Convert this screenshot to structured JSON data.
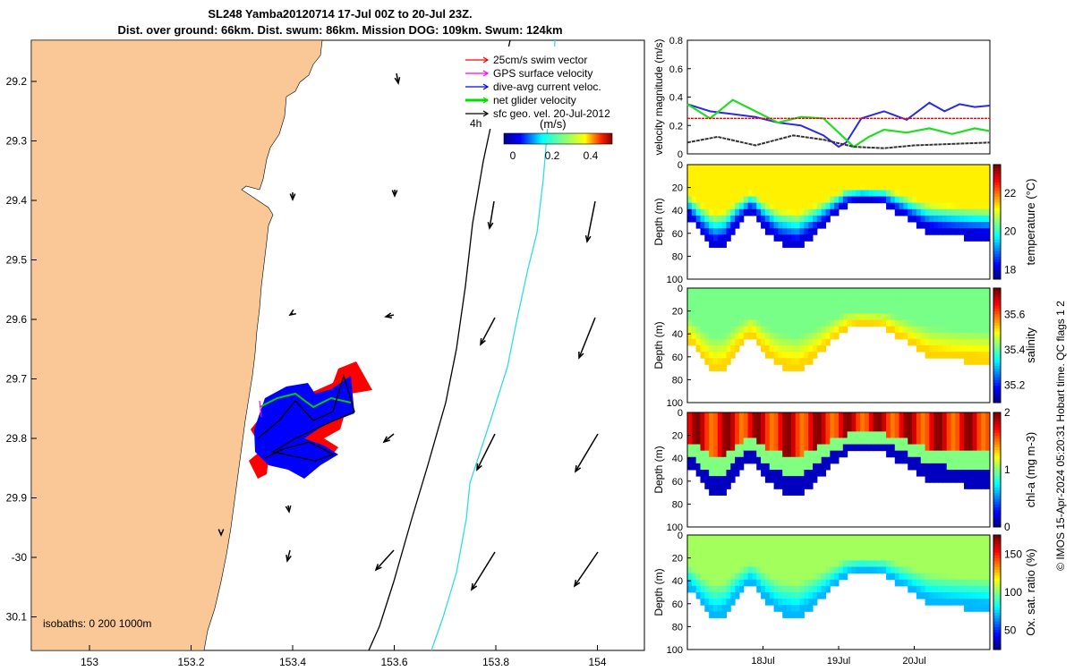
{
  "title": {
    "line1": "SL248 Yamba20120714 17-Jul 00Z to 20-Jul 23Z.",
    "line2": "Dist. over ground: 66km. Dist. swum: 86km. Mission DOG: 109km. Swum: 124km"
  },
  "map": {
    "lat_ticks": [
      "29.2",
      "29.3",
      "29.4",
      "29.5",
      "29.6",
      "29.7",
      "29.8",
      "29.9",
      "-30",
      "30.1"
    ],
    "lon_ticks": [
      "153",
      "153.2",
      "153.4",
      "153.6",
      "153.8",
      "154"
    ],
    "legend": [
      {
        "label": "25cm/s swim vector",
        "color": "#ff0000"
      },
      {
        "label": "GPS surface velocity",
        "color": "#ff00ff"
      },
      {
        "label": "dive-avg current veloc.",
        "color": "#0000ff"
      },
      {
        "label": "net glider velocity",
        "color": "#00e000"
      },
      {
        "label": "sfc geo. vel. 20-Jul-2012",
        "color": "#000000"
      }
    ],
    "time_step": "4h",
    "colorbar": {
      "label": "(m/s)",
      "ticks": [
        "0",
        "0.2",
        "0.4"
      ]
    },
    "isobaths": "isobaths: 0   200  1000m",
    "land_color": "#f9c896"
  },
  "chart_data": [
    {
      "type": "line",
      "title": "",
      "ylabel": "velocity magnitude (m/s)",
      "ylim": [
        0,
        0.8
      ],
      "yticks": [
        "0",
        "0.2",
        "0.4",
        "0.6",
        "0.8"
      ],
      "x_days": [
        17,
        21
      ],
      "series": [
        {
          "name": "dive-avg current",
          "color": "#2a2ae0",
          "x": [
            17.0,
            17.3,
            17.6,
            17.9,
            18.2,
            18.5,
            18.8,
            19.0,
            19.1,
            19.3,
            19.6,
            19.9,
            20.2,
            20.4,
            20.6,
            20.8,
            21.0
          ],
          "values": [
            0.35,
            0.3,
            0.28,
            0.26,
            0.22,
            0.2,
            0.13,
            0.05,
            0.08,
            0.25,
            0.3,
            0.24,
            0.36,
            0.3,
            0.35,
            0.33,
            0.34
          ]
        },
        {
          "name": "net glider",
          "color": "#22dd22",
          "x": [
            17.0,
            17.3,
            17.6,
            17.9,
            18.2,
            18.5,
            18.8,
            19.0,
            19.2,
            19.4,
            19.6,
            19.9,
            20.2,
            20.5,
            20.8,
            21.0
          ],
          "values": [
            0.35,
            0.25,
            0.38,
            0.3,
            0.22,
            0.26,
            0.25,
            0.15,
            0.05,
            0.12,
            0.17,
            0.15,
            0.18,
            0.14,
            0.18,
            0.16
          ]
        },
        {
          "name": "swim vector",
          "color": "#ff0000",
          "x": [
            17.0,
            21.0
          ],
          "values": [
            0.25,
            0.25
          ]
        },
        {
          "name": "surface geostrophic",
          "color": "#333333",
          "x": [
            17.0,
            17.4,
            17.9,
            18.4,
            18.8,
            19.2,
            19.6,
            20.0,
            20.5,
            21.0
          ],
          "values": [
            0.08,
            0.12,
            0.06,
            0.13,
            0.1,
            0.05,
            0.04,
            0.06,
            0.07,
            0.08
          ]
        }
      ]
    },
    {
      "type": "heatmap",
      "ylabel": "Depth (m)",
      "ylim": [
        0,
        100
      ],
      "yticks": [
        "0",
        "20",
        "40",
        "60",
        "80",
        "100"
      ],
      "variable": "temperature (°C)",
      "clim": [
        17.5,
        23.5
      ],
      "cticks": [
        "18",
        "20",
        "22"
      ],
      "surface": 21.3,
      "bottom": 18.0
    },
    {
      "type": "heatmap",
      "ylabel": "Depth (m)",
      "ylim": [
        0,
        100
      ],
      "yticks": [
        "0",
        "20",
        "40",
        "60",
        "80",
        "100"
      ],
      "variable": "salinity",
      "clim": [
        35.1,
        35.75
      ],
      "cticks": [
        "35.2",
        "35.4",
        "35.6"
      ],
      "surface": 35.42,
      "bottom": 35.53
    },
    {
      "type": "heatmap",
      "ylabel": "Depth (m)",
      "ylim": [
        0,
        100
      ],
      "yticks": [
        "0",
        "20",
        "40",
        "60",
        "80",
        "100"
      ],
      "variable": "chl-a (mg m-3)",
      "clim": [
        0,
        2
      ],
      "cticks": [
        "0",
        "1",
        "2"
      ],
      "surface": 1.8,
      "bottom": 0.1
    },
    {
      "type": "heatmap",
      "ylabel": "Depth (m)",
      "ylim": [
        0,
        100
      ],
      "yticks": [
        "0",
        "20",
        "40",
        "60",
        "80",
        "100"
      ],
      "variable": "Ox. sat. ratio (%)",
      "clim": [
        25,
        175
      ],
      "cticks": [
        "50",
        "100",
        "150"
      ],
      "surface": 105,
      "bottom": 70
    }
  ],
  "time_axis": {
    "ticks": [
      "18Jul",
      "19Jul",
      "20Jul"
    ],
    "tick_days": [
      18,
      19,
      20
    ]
  },
  "profile_depth": {
    "x_days": [
      17.0,
      17.2,
      17.35,
      17.5,
      17.65,
      17.85,
      18.0,
      18.2,
      18.45,
      18.7,
      18.95,
      19.1,
      19.3,
      19.6,
      19.9,
      20.2,
      20.5,
      20.8,
      21.0
    ],
    "depth": [
      42,
      60,
      72,
      68,
      52,
      38,
      52,
      66,
      71,
      58,
      42,
      33,
      30,
      32,
      45,
      57,
      60,
      62,
      63
    ]
  },
  "credit": "© IMOS 15-Apr-2024 05:20:31 Hobart time. QC flags 1  2"
}
